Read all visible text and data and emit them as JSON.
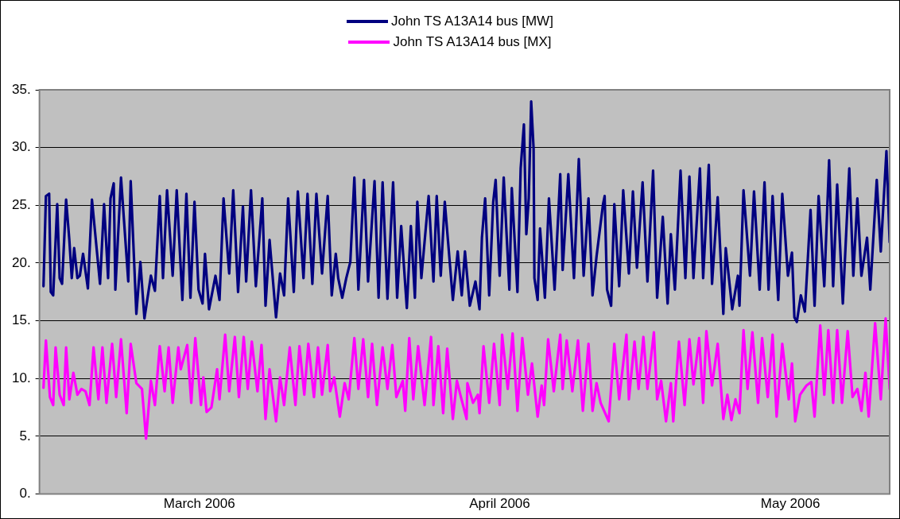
{
  "chart_data": {
    "type": "line",
    "xlim": [
      "2006-02-12T12:00",
      "2006-05-11T06:00"
    ],
    "xticks": [
      {
        "value": "2006-03-01",
        "label": "March 2006"
      },
      {
        "value": "2006-04-01",
        "label": "April 2006"
      },
      {
        "value": "2006-05-01",
        "label": "May 2006"
      }
    ],
    "ylim": [
      0,
      35
    ],
    "yticks": [
      {
        "value": 0,
        "label": "0."
      },
      {
        "value": 5,
        "label": "5."
      },
      {
        "value": 10,
        "label": "10."
      },
      {
        "value": 15,
        "label": "15."
      },
      {
        "value": 20,
        "label": "20."
      },
      {
        "value": 25,
        "label": "25."
      },
      {
        "value": 30,
        "label": "30."
      },
      {
        "value": 35,
        "label": "35."
      }
    ],
    "grid": "y",
    "legend": "top",
    "marker": "none",
    "line_style": "solid",
    "series": [
      {
        "name": "John TS A13A14 bus [MW]",
        "color": "#000080",
        "x": [
          "2006-02-12T22:00",
          "2006-02-13T04:00",
          "2006-02-13T12:00",
          "2006-02-13T16:00",
          "2006-02-13T22:00",
          "2006-02-14T08:00",
          "2006-02-14T14:00",
          "2006-02-14T20:00",
          "2006-02-15T06:00",
          "2006-02-15T14:00",
          "2006-02-15T20:00",
          "2006-02-16T02:00",
          "2006-02-16T10:00",
          "2006-02-16T16:00",
          "2006-02-17T00:00",
          "2006-02-17T12:00",
          "2006-02-17T22:00",
          "2006-02-18T18:00",
          "2006-02-19T04:00",
          "2006-02-19T14:00",
          "2006-02-19T20:00",
          "2006-02-20T04:00",
          "2006-02-20T08:00",
          "2006-02-20T22:00",
          "2006-02-21T16:00",
          "2006-02-21T22:00",
          "2006-02-22T12:00",
          "2006-02-22T22:00",
          "2006-02-23T08:00",
          "2006-02-24T00:00",
          "2006-02-24T10:00",
          "2006-02-24T22:00",
          "2006-02-25T06:00",
          "2006-02-25T16:00",
          "2006-02-26T06:00",
          "2006-02-26T16:00",
          "2006-02-27T06:00",
          "2006-02-27T16:00",
          "2006-02-28T02:00",
          "2006-02-28T12:00",
          "2006-02-28T22:00",
          "2006-03-01T08:00",
          "2006-03-01T14:00",
          "2006-03-02T00:00",
          "2006-03-02T16:00",
          "2006-03-03T02:00",
          "2006-03-03T12:00",
          "2006-03-04T02:00",
          "2006-03-04T12:00",
          "2006-03-05T00:00",
          "2006-03-05T12:00",
          "2006-03-05T20:00",
          "2006-03-06T08:00",
          "2006-03-06T20:00",
          "2006-03-07T12:00",
          "2006-03-07T20:00",
          "2006-03-08T06:00",
          "2006-03-08T22:00",
          "2006-03-09T08:00",
          "2006-03-09T18:00",
          "2006-03-10T04:00",
          "2006-03-10T18:00",
          "2006-03-11T04:00",
          "2006-03-11T18:00",
          "2006-03-12T04:00",
          "2006-03-12T16:00",
          "2006-03-13T02:00",
          "2006-03-13T16:00",
          "2006-03-14T06:00",
          "2006-03-14T16:00",
          "2006-03-15T02:00",
          "2006-03-15T08:00",
          "2006-03-15T18:00",
          "2006-03-16T04:00",
          "2006-03-16T14:00",
          "2006-03-17T00:00",
          "2006-03-17T10:00",
          "2006-03-18T00:00",
          "2006-03-18T10:00",
          "2006-03-19T02:00",
          "2006-03-19T12:00",
          "2006-03-19T22:00",
          "2006-03-20T10:00",
          "2006-03-21T00:00",
          "2006-03-21T10:00",
          "2006-03-21T20:00",
          "2006-03-22T10:00",
          "2006-03-22T20:00",
          "2006-03-23T06:00",
          "2006-03-23T12:00",
          "2006-03-23T22:00",
          "2006-03-24T16:00",
          "2006-03-25T04:00",
          "2006-03-25T12:00",
          "2006-03-25T22:00",
          "2006-03-26T08:00",
          "2006-03-27T04:00",
          "2006-03-27T16:00",
          "2006-03-28T02:00",
          "2006-03-28T10:00",
          "2006-03-28T22:00",
          "2006-03-29T12:00",
          "2006-03-29T22:00",
          "2006-03-30T04:00",
          "2006-03-30T12:00",
          "2006-03-30T22:00",
          "2006-03-31T08:00",
          "2006-03-31T14:00",
          "2006-04-01T00:00",
          "2006-04-01T10:00",
          "2006-04-02T00:00",
          "2006-04-02T06:00",
          "2006-04-02T20:00",
          "2006-04-03T04:00",
          "2006-04-03T12:00",
          "2006-04-03T18:00",
          "2006-04-04T00:00",
          "2006-04-04T06:00",
          "2006-04-04T12:00",
          "2006-04-04T14:00",
          "2006-04-04T22:00",
          "2006-04-05T04:00",
          "2006-04-05T16:00",
          "2006-04-06T02:00",
          "2006-04-06T16:00",
          "2006-04-07T06:00",
          "2006-04-07T12:00",
          "2006-04-08T02:00",
          "2006-04-08T16:00",
          "2006-04-09T04:00",
          "2006-04-09T16:00",
          "2006-04-10T04:00",
          "2006-04-10T14:00",
          "2006-04-11T00:00",
          "2006-04-11T16:00",
          "2006-04-11T20:00",
          "2006-04-12T02:00",
          "2006-04-12T12:00",
          "2006-04-12T20:00",
          "2006-04-13T08:00",
          "2006-04-13T18:00",
          "2006-04-14T08:00",
          "2006-04-14T18:00",
          "2006-04-15T04:00",
          "2006-04-15T18:00",
          "2006-04-16T06:00",
          "2006-04-16T20:00",
          "2006-04-17T06:00",
          "2006-04-17T20:00",
          "2006-04-18T08:00",
          "2006-04-18T16:00",
          "2006-04-19T02:00",
          "2006-04-19T16:00",
          "2006-04-20T04:00",
          "2006-04-20T14:00",
          "2006-04-21T00:00",
          "2006-04-21T16:00",
          "2006-04-22T00:00",
          "2006-04-22T14:00",
          "2006-04-22T22:00",
          "2006-04-23T12:00",
          "2006-04-24T02:00",
          "2006-04-24T08:00",
          "2006-04-25T00:00",
          "2006-04-25T14:00",
          "2006-04-25T18:00",
          "2006-04-26T04:00",
          "2006-04-26T20:00",
          "2006-04-27T06:00",
          "2006-04-27T20:00",
          "2006-04-28T08:00",
          "2006-04-28T18:00",
          "2006-04-29T04:00",
          "2006-04-29T18:00",
          "2006-04-30T04:00",
          "2006-04-30T18:00",
          "2006-05-01T04:00",
          "2006-05-01T10:00",
          "2006-05-01T16:00",
          "2006-05-02T02:00",
          "2006-05-02T12:00",
          "2006-05-03T02:00",
          "2006-05-03T12:00",
          "2006-05-03T22:00",
          "2006-05-04T12:00",
          "2006-05-05T00:00",
          "2006-05-05T10:00",
          "2006-05-05T20:00",
          "2006-05-06T10:00",
          "2006-05-07T02:00",
          "2006-05-07T12:00",
          "2006-05-07T22:00",
          "2006-05-08T08:00",
          "2006-05-08T22:00",
          "2006-05-09T06:00",
          "2006-05-09T22:00",
          "2006-05-10T08:00",
          "2006-05-10T22:00",
          "2006-05-11T06:00"
        ],
        "values": [
          18.0,
          25.8,
          26.0,
          17.5,
          17.2,
          25.1,
          18.7,
          18.2,
          25.5,
          22.0,
          18.7,
          21.3,
          18.7,
          18.9,
          20.8,
          17.8,
          25.5,
          18.2,
          25.1,
          18.7,
          25.6,
          26.9,
          17.7,
          27.4,
          18.4,
          27.1,
          15.6,
          20.1,
          15.2,
          18.9,
          17.6,
          25.8,
          18.7,
          26.3,
          18.9,
          26.3,
          16.8,
          26.0,
          17.0,
          25.3,
          17.7,
          16.5,
          20.8,
          16.0,
          18.9,
          16.8,
          25.6,
          19.1,
          26.3,
          17.5,
          24.9,
          18.4,
          26.3,
          18.0,
          25.6,
          16.3,
          22.0,
          15.3,
          19.1,
          17.2,
          25.6,
          17.5,
          26.2,
          18.7,
          26.0,
          18.2,
          26.0,
          19.1,
          25.8,
          17.2,
          20.8,
          18.7,
          17.0,
          18.7,
          20.1,
          27.4,
          17.7,
          27.2,
          18.4,
          27.1,
          17.0,
          27.0,
          16.9,
          27.0,
          17.0,
          23.2,
          16.1,
          23.2,
          17.0,
          25.3,
          18.7,
          25.8,
          18.4,
          25.8,
          18.9,
          25.3,
          16.8,
          21.0,
          17.2,
          21.0,
          16.3,
          18.4,
          16.0,
          22.2,
          25.6,
          17.2,
          25.3,
          27.2,
          18.9,
          27.4,
          17.7,
          26.5,
          17.5,
          28.2,
          32.0,
          22.5,
          25.6,
          34.0,
          29.9,
          18.7,
          16.8,
          23.0,
          17.0,
          25.6,
          17.7,
          27.7,
          19.4,
          27.7,
          18.7,
          29.0,
          18.9,
          25.6,
          17.2,
          20.6,
          25.1,
          25.8,
          17.7,
          16.3,
          25.1,
          18.0,
          26.3,
          19.1,
          26.2,
          19.6,
          27.0,
          18.4,
          28.0,
          17.0,
          24.0,
          16.5,
          22.5,
          17.7,
          28.0,
          18.7,
          27.5,
          18.7,
          28.2,
          18.7,
          28.5,
          18.2,
          25.7,
          15.6,
          21.3,
          16.0,
          18.9,
          16.3,
          26.3,
          18.9,
          26.2,
          17.7,
          27.0,
          17.7,
          25.8,
          16.8,
          26.0,
          18.9,
          20.9,
          15.3,
          14.9,
          17.2,
          15.8,
          24.6,
          16.3,
          25.8,
          18.0,
          28.9,
          18.0,
          26.8,
          16.5,
          28.2,
          18.9,
          25.6,
          18.9,
          22.2,
          17.7,
          27.2,
          21.0,
          29.7,
          21.8
        ]
      },
      {
        "name": "John TS A13A14 bus [MX]",
        "color": "#ff00ff",
        "x": [
          "2006-02-12T22:00",
          "2006-02-13T04:00",
          "2006-02-13T14:00",
          "2006-02-13T22:00",
          "2006-02-14T04:00",
          "2006-02-14T14:00",
          "2006-02-15T00:00",
          "2006-02-15T06:00",
          "2006-02-15T14:00",
          "2006-02-16T00:00",
          "2006-02-16T10:00",
          "2006-02-16T20:00",
          "2006-02-17T06:00",
          "2006-02-17T16:00",
          "2006-02-18T02:00",
          "2006-02-18T14:00",
          "2006-02-19T00:00",
          "2006-02-19T10:00",
          "2006-02-20T00:00",
          "2006-02-20T10:00",
          "2006-02-20T22:00",
          "2006-02-21T12:00",
          "2006-02-21T22:00",
          "2006-02-22T12:00",
          "2006-02-23T02:00",
          "2006-02-23T12:00",
          "2006-02-24T00:00",
          "2006-02-24T10:00",
          "2006-02-24T22:00",
          "2006-02-25T10:00",
          "2006-02-25T20:00",
          "2006-02-26T06:00",
          "2006-02-26T20:00",
          "2006-02-27T02:00",
          "2006-02-27T18:00",
          "2006-02-28T04:00",
          "2006-02-28T14:00",
          "2006-03-01T04:00",
          "2006-03-01T10:00",
          "2006-03-01T18:00",
          "2006-03-02T06:00",
          "2006-03-02T20:00",
          "2006-03-03T02:00",
          "2006-03-03T16:00",
          "2006-03-04T02:00",
          "2006-03-04T16:00",
          "2006-03-05T02:00",
          "2006-03-05T14:00",
          "2006-03-06T00:00",
          "2006-03-06T10:00",
          "2006-03-07T00:00",
          "2006-03-07T10:00",
          "2006-03-07T20:00",
          "2006-03-08T06:00",
          "2006-03-08T22:00",
          "2006-03-09T08:00",
          "2006-03-09T18:00",
          "2006-03-10T08:00",
          "2006-03-10T22:00",
          "2006-03-11T08:00",
          "2006-03-11T20:00",
          "2006-03-12T06:00",
          "2006-03-12T20:00",
          "2006-03-13T06:00",
          "2006-03-13T16:00",
          "2006-03-14T06:00",
          "2006-03-14T12:00",
          "2006-03-14T22:00",
          "2006-03-15T12:00",
          "2006-03-16T00:00",
          "2006-03-16T10:00",
          "2006-03-17T00:00",
          "2006-03-17T10:00",
          "2006-03-17T22:00",
          "2006-03-18T10:00",
          "2006-03-18T20:00",
          "2006-03-19T08:00",
          "2006-03-19T22:00",
          "2006-03-20T10:00",
          "2006-03-20T22:00",
          "2006-03-21T08:00",
          "2006-03-22T00:00",
          "2006-03-22T06:00",
          "2006-03-22T16:00",
          "2006-03-23T02:00",
          "2006-03-23T14:00",
          "2006-03-24T06:00",
          "2006-03-24T22:00",
          "2006-03-25T04:00",
          "2006-03-25T16:00",
          "2006-03-26T04:00",
          "2006-03-26T14:00",
          "2006-03-27T04:00",
          "2006-03-27T14:00",
          "2006-03-28T00:00",
          "2006-03-28T14:00",
          "2006-03-28T16:00",
          "2006-03-29T06:00",
          "2006-03-29T18:00",
          "2006-03-29T22:00",
          "2006-03-30T08:00",
          "2006-03-30T22:00",
          "2006-03-31T10:00",
          "2006-04-01T00:00",
          "2006-04-01T06:00",
          "2006-04-01T20:00",
          "2006-04-02T08:00",
          "2006-04-02T20:00",
          "2006-04-03T08:00",
          "2006-04-03T22:00",
          "2006-04-04T08:00",
          "2006-04-04T22:00",
          "2006-04-05T08:00",
          "2006-04-05T14:00",
          "2006-04-06T00:00",
          "2006-04-06T14:00",
          "2006-04-07T06:00",
          "2006-04-07T12:00",
          "2006-04-07T22:00",
          "2006-04-08T12:00",
          "2006-04-09T02:00",
          "2006-04-09T14:00",
          "2006-04-10T04:00",
          "2006-04-10T14:00",
          "2006-04-11T00:00",
          "2006-04-11T10:00",
          "2006-04-12T06:00",
          "2006-04-12T20:00",
          "2006-04-13T08:00",
          "2006-04-14T02:00",
          "2006-04-14T08:00",
          "2006-04-14T22:00",
          "2006-04-15T08:00",
          "2006-04-15T20:00",
          "2006-04-16T06:00",
          "2006-04-16T22:00",
          "2006-04-17T06:00",
          "2006-04-17T16:00",
          "2006-04-18T04:00",
          "2006-04-18T16:00",
          "2006-04-18T22:00",
          "2006-04-19T12:00",
          "2006-04-20T02:00",
          "2006-04-20T14:00",
          "2006-04-21T00:00",
          "2006-04-21T14:00",
          "2006-04-22T00:00",
          "2006-04-22T08:00",
          "2006-04-22T22:00",
          "2006-04-23T12:00",
          "2006-04-24T02:00",
          "2006-04-24T12:00",
          "2006-04-24T22:00",
          "2006-04-25T08:00",
          "2006-04-25T18:00",
          "2006-04-26T04:00",
          "2006-04-26T14:00",
          "2006-04-27T02:00",
          "2006-04-27T16:00",
          "2006-04-28T02:00",
          "2006-04-28T16:00",
          "2006-04-29T04:00",
          "2006-04-29T14:00",
          "2006-04-30T04:00",
          "2006-04-30T20:00",
          "2006-05-01T04:00",
          "2006-05-01T12:00",
          "2006-05-02T00:00",
          "2006-05-02T16:00",
          "2006-05-03T04:00",
          "2006-05-03T12:00",
          "2006-05-04T02:00",
          "2006-05-04T12:00",
          "2006-05-04T22:00",
          "2006-05-05T10:00",
          "2006-05-05T20:00",
          "2006-05-06T08:00",
          "2006-05-06T22:00",
          "2006-05-07T10:00",
          "2006-05-07T22:00",
          "2006-05-08T08:00",
          "2006-05-08T18:00",
          "2006-05-09T02:00",
          "2006-05-09T18:00",
          "2006-05-10T08:00",
          "2006-05-10T20:00",
          "2006-05-11T06:00"
        ],
        "values": [
          9.2,
          13.3,
          8.4,
          7.7,
          12.7,
          8.6,
          7.7,
          12.7,
          8.2,
          10.5,
          8.6,
          9.1,
          8.9,
          7.7,
          12.7,
          8.2,
          12.7,
          7.9,
          13.0,
          8.4,
          13.4,
          7.0,
          13.0,
          9.6,
          9.1,
          4.8,
          9.8,
          7.7,
          12.8,
          8.9,
          12.7,
          7.9,
          12.7,
          10.8,
          12.9,
          7.9,
          13.5,
          7.7,
          10.1,
          7.1,
          7.5,
          10.8,
          8.2,
          13.8,
          8.9,
          13.6,
          8.4,
          13.6,
          9.1,
          13.2,
          8.9,
          12.9,
          6.5,
          10.8,
          6.3,
          10.1,
          7.7,
          12.7,
          7.7,
          12.8,
          8.6,
          13.0,
          8.4,
          12.7,
          8.6,
          12.9,
          8.9,
          10.1,
          6.7,
          9.6,
          8.2,
          13.5,
          9.1,
          13.4,
          8.4,
          13.0,
          7.7,
          12.7,
          9.1,
          12.9,
          8.4,
          9.8,
          7.2,
          13.5,
          8.2,
          12.8,
          7.7,
          13.6,
          7.7,
          12.8,
          7.0,
          12.6,
          6.5,
          9.8,
          8.4,
          6.5,
          9.6,
          7.9,
          8.6,
          7.0,
          12.8,
          7.9,
          13.0,
          7.7,
          13.8,
          9.1,
          13.9,
          7.2,
          13.5,
          8.6,
          11.3,
          6.7,
          9.4,
          7.7,
          13.4,
          8.9,
          13.8,
          9.1,
          13.3,
          8.9,
          13.3,
          7.2,
          13.0,
          7.2,
          9.6,
          7.9,
          6.3,
          13.0,
          8.2,
          13.8,
          8.2,
          13.2,
          9.1,
          13.6,
          9.1,
          14.0,
          8.2,
          9.8,
          6.3,
          9.6,
          6.3,
          13.2,
          7.7,
          13.4,
          9.5,
          13.5,
          7.9,
          14.1,
          9.4,
          13.0,
          6.5,
          8.6,
          6.4,
          8.2,
          7.0,
          14.2,
          9.1,
          14.0,
          7.9,
          13.5,
          8.4,
          13.8,
          6.7,
          13.0,
          8.2,
          11.3,
          6.3,
          8.6,
          9.4,
          9.7,
          6.7,
          14.6,
          8.6,
          14.2,
          7.9,
          14.2,
          7.9,
          14.1,
          8.4,
          9.1,
          7.2,
          10.5,
          6.7,
          14.8,
          8.2,
          15.2,
          9.1
        ]
      }
    ]
  }
}
